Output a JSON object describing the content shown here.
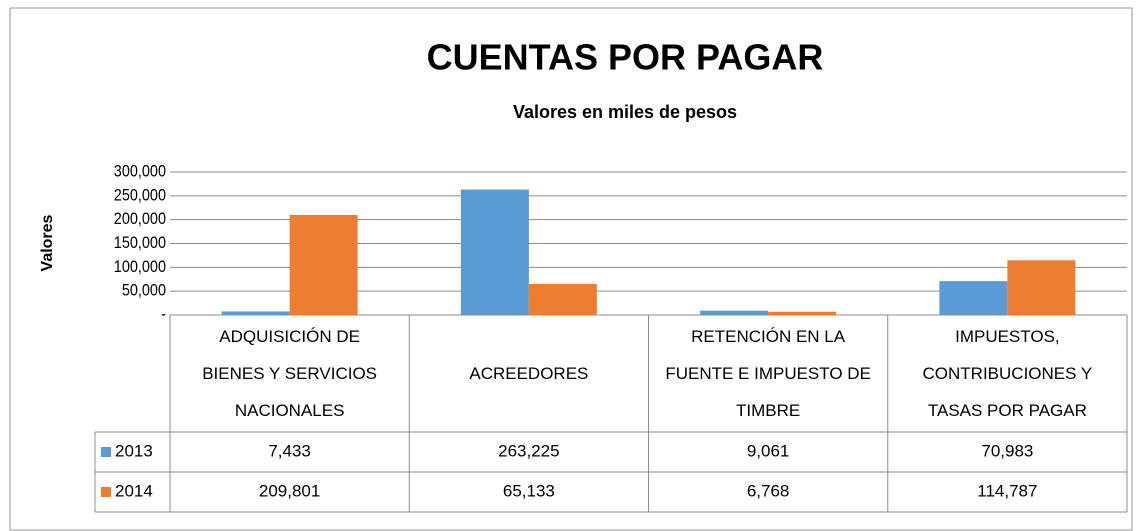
{
  "chart_data": {
    "type": "bar",
    "title": "CUENTAS POR PAGAR",
    "subtitle": "Valores en miles de pesos",
    "y_label": "Valores",
    "categories": [
      "ADQUISICIÓN DE\nBIENES Y SERVICIOS\nNACIONALES",
      "ACREEDORES",
      "RETENCIÓN EN LA\nFUENTE E IMPUESTO DE\nTIMBRE",
      "IMPUESTOS,\nCONTRIBUCIONES Y\nTASAS POR PAGAR"
    ],
    "series": [
      {
        "name": "2013",
        "color": "#5b9bd5",
        "values": [
          7433,
          263225,
          9061,
          70983
        ],
        "value_labels": [
          "7,433",
          "263,225",
          "9,061",
          "70,983"
        ]
      },
      {
        "name": "2014",
        "color": "#ed7d31",
        "values": [
          209801,
          65133,
          6768,
          114787
        ],
        "value_labels": [
          "209,801",
          "65,133",
          "6,768",
          "114,787"
        ]
      }
    ],
    "ylim": [
      0,
      300000
    ],
    "yticks": [
      {
        "value": 0,
        "label": "-"
      },
      {
        "value": 50000,
        "label": "50,000"
      },
      {
        "value": 100000,
        "label": "100,000"
      },
      {
        "value": 150000,
        "label": "150,000"
      },
      {
        "value": 200000,
        "label": "200,000"
      },
      {
        "value": 250000,
        "label": "250,000"
      },
      {
        "value": 300000,
        "label": "300,000"
      }
    ],
    "grid": true,
    "data_table": true
  }
}
